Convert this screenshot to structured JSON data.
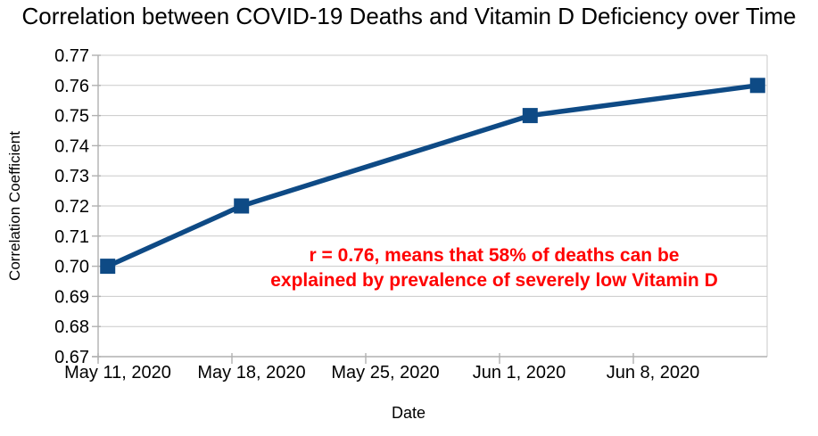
{
  "chart": {
    "title": "Correlation between COVID-19 Deaths and Vitamin D Deficiency over Time",
    "x_axis_title": "Date",
    "y_axis_title": "Correlation Coefficient"
  },
  "annotation": {
    "line1": "r = 0.76, means that 58% of deaths can be",
    "line2": "explained by prevalence of severely low Vitamin D",
    "color": "#ff0000"
  },
  "colors": {
    "series": "#0e4a85",
    "grid": "#c9c9c9",
    "axis": "#b0b0b0",
    "text": "#000000",
    "background": "#ffffff"
  },
  "chart_data": {
    "type": "line",
    "title": "Correlation between COVID-19 Deaths and Vitamin D Deficiency over Time",
    "xlabel": "Date",
    "ylabel": "Correlation Coefficient",
    "ylim": [
      0.67,
      0.77
    ],
    "y_ticks": [
      "0.67",
      "0.68",
      "0.69",
      "0.70",
      "0.71",
      "0.72",
      "0.73",
      "0.74",
      "0.75",
      "0.76",
      "0.77"
    ],
    "x_ticks": [
      "May 11, 2020",
      "May 18, 2020",
      "May 25, 2020",
      "Jun 1, 2020",
      "Jun 8, 2020"
    ],
    "x_tick_interval_days": 7,
    "x_axis_start": "May 11, 2020",
    "x_axis_span_days": 35,
    "grid": "horizontal",
    "legend": "none",
    "series": [
      {
        "name": "Correlation Coefficient",
        "color": "#0e4a85",
        "marker": "square",
        "points": [
          {
            "date": "May 11, 2020",
            "day_offset": 0.5,
            "value": 0.7
          },
          {
            "date": "May 18, 2020",
            "day_offset": 7.5,
            "value": 0.72
          },
          {
            "date": "Jun 2, 2020",
            "day_offset": 22.6,
            "value": 0.75
          },
          {
            "date": "Jun 14, 2020",
            "day_offset": 34.5,
            "value": 0.76
          }
        ]
      }
    ],
    "annotation": "r = 0.76, means that 58% of deaths can be explained by prevalence of severely low Vitamin D"
  }
}
